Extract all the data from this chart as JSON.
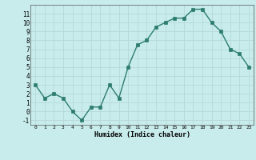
{
  "x": [
    0,
    1,
    2,
    3,
    4,
    5,
    6,
    7,
    8,
    9,
    10,
    11,
    12,
    13,
    14,
    15,
    16,
    17,
    18,
    19,
    20,
    21,
    22,
    23
  ],
  "y": [
    3,
    1.5,
    2,
    1.5,
    0,
    -1,
    0.5,
    0.5,
    3,
    1.5,
    5,
    7.5,
    8,
    9.5,
    10,
    10.5,
    10.5,
    11.5,
    11.5,
    10,
    9,
    7,
    6.5,
    5
  ],
  "line_color": "#2d7d6e",
  "marker_color": "#2d7d6e",
  "bg_color": "#c8ecec",
  "grid_color": "#b8dada",
  "xlabel": "Humidex (Indice chaleur)",
  "xlim": [
    -0.5,
    23.5
  ],
  "ylim": [
    -1.5,
    12
  ],
  "yticks": [
    -1,
    0,
    1,
    2,
    3,
    4,
    5,
    6,
    7,
    8,
    9,
    10,
    11
  ],
  "xticks": [
    0,
    1,
    2,
    3,
    4,
    5,
    6,
    7,
    8,
    9,
    10,
    11,
    12,
    13,
    14,
    15,
    16,
    17,
    18,
    19,
    20,
    21,
    22,
    23
  ]
}
